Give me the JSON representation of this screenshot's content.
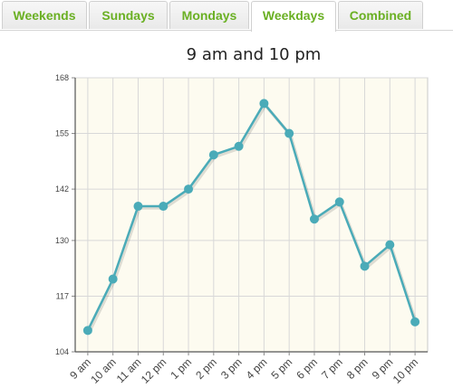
{
  "tabs": [
    {
      "label": "Weekends",
      "active": false
    },
    {
      "label": "Sundays",
      "active": false
    },
    {
      "label": "Mondays",
      "active": false
    },
    {
      "label": "Weekdays",
      "active": true
    },
    {
      "label": "Combined",
      "active": false
    }
  ],
  "colors": {
    "tab_text": "#6ab023",
    "line": "#4aabb8",
    "plot_bg": "#fdfbf0",
    "grid": "#d8d8d8"
  },
  "chart_data": {
    "type": "line",
    "title": "9 am and 10 pm",
    "xlabel": "",
    "ylabel": "",
    "categories": [
      "9 am",
      "10 am",
      "11 am",
      "12 pm",
      "1 pm",
      "2 pm",
      "3 pm",
      "4 pm",
      "5 pm",
      "6 pm",
      "7 pm",
      "8 pm",
      "9 pm",
      "10 pm"
    ],
    "values": [
      109,
      121,
      138,
      138,
      142,
      150,
      152,
      162,
      155,
      135,
      139,
      124,
      129,
      111
    ],
    "yticks": [
      104,
      117,
      130,
      142,
      155,
      168
    ],
    "ylim": [
      104,
      168
    ],
    "grid": true,
    "legend": "none"
  }
}
